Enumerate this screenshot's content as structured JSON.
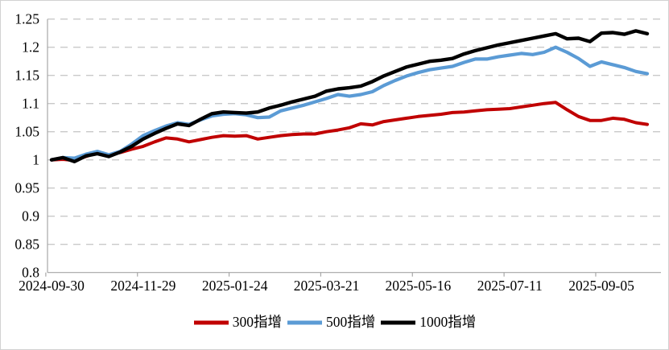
{
  "chart_data": {
    "type": "line",
    "title": "",
    "xlabel": "",
    "ylabel": "",
    "grid": "horizontal-dashed",
    "legend_position": "bottom",
    "ylim": [
      0.8,
      1.25
    ],
    "y_tick_labels": [
      "1.25",
      "1.2",
      "1.15",
      "1.1",
      "1.05",
      "1",
      "0.95",
      "0.9",
      "0.85",
      "0.8"
    ],
    "y_tick_values": [
      1.25,
      1.2,
      1.15,
      1.1,
      1.05,
      1.0,
      0.95,
      0.9,
      0.85,
      0.8
    ],
    "x_tick_labels": [
      "2024-09-30",
      "2024-11-29",
      "2025-01-24",
      "2025-03-21",
      "2025-05-16",
      "2025-07-11",
      "2025-09-05"
    ],
    "x_tick_positions": [
      0,
      8,
      16,
      24,
      32,
      40,
      48
    ],
    "n_points": 53,
    "x_unit": "weekly trading dates",
    "series": [
      {
        "name": "300指增",
        "color": "#c00000",
        "values": [
          1.0,
          1.001,
          0.999,
          1.006,
          1.013,
          1.009,
          1.013,
          1.019,
          1.024,
          1.032,
          1.039,
          1.037,
          1.032,
          1.036,
          1.04,
          1.043,
          1.042,
          1.043,
          1.037,
          1.04,
          1.043,
          1.045,
          1.046,
          1.046,
          1.05,
          1.053,
          1.057,
          1.064,
          1.062,
          1.068,
          1.071,
          1.074,
          1.077,
          1.079,
          1.081,
          1.084,
          1.085,
          1.087,
          1.089,
          1.09,
          1.091,
          1.094,
          1.097,
          1.1,
          1.102,
          1.089,
          1.077,
          1.07,
          1.07,
          1.074,
          1.072,
          1.066,
          1.063
        ]
      },
      {
        "name": "500指增",
        "color": "#5b9bd5",
        "values": [
          1.0,
          1.004,
          1.003,
          1.01,
          1.015,
          1.009,
          1.015,
          1.028,
          1.043,
          1.052,
          1.06,
          1.066,
          1.063,
          1.071,
          1.078,
          1.081,
          1.082,
          1.08,
          1.075,
          1.076,
          1.087,
          1.092,
          1.097,
          1.103,
          1.109,
          1.116,
          1.113,
          1.116,
          1.121,
          1.132,
          1.141,
          1.149,
          1.155,
          1.16,
          1.163,
          1.166,
          1.173,
          1.179,
          1.179,
          1.183,
          1.186,
          1.189,
          1.187,
          1.191,
          1.2,
          1.191,
          1.18,
          1.166,
          1.174,
          1.169,
          1.164,
          1.157,
          1.153
        ]
      },
      {
        "name": "1000指增",
        "color": "#000000",
        "values": [
          1.0,
          1.004,
          0.997,
          1.007,
          1.011,
          1.006,
          1.014,
          1.024,
          1.037,
          1.047,
          1.056,
          1.064,
          1.061,
          1.072,
          1.082,
          1.085,
          1.084,
          1.083,
          1.085,
          1.092,
          1.097,
          1.103,
          1.108,
          1.113,
          1.122,
          1.126,
          1.128,
          1.131,
          1.139,
          1.149,
          1.157,
          1.165,
          1.17,
          1.175,
          1.177,
          1.18,
          1.188,
          1.194,
          1.199,
          1.204,
          1.208,
          1.212,
          1.216,
          1.22,
          1.224,
          1.215,
          1.216,
          1.21,
          1.225,
          1.226,
          1.223,
          1.229,
          1.224
        ]
      }
    ],
    "colors": {
      "gridline": "#c9c9c9",
      "axis": "#a6a6a6",
      "frame_border": "#d2d2d2",
      "tick_text": "#000000"
    }
  }
}
